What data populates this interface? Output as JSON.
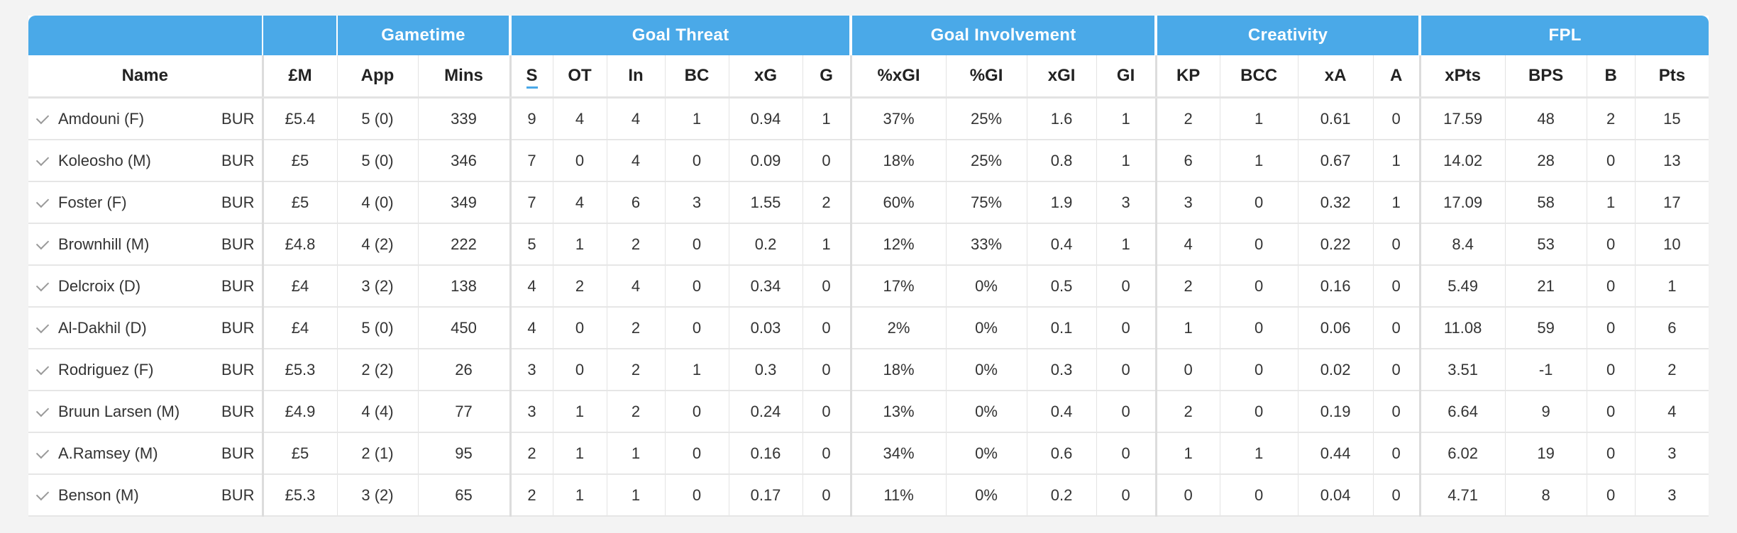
{
  "groups": [
    "Gametime",
    "Goal Threat",
    "Goal Involvement",
    "Creativity",
    "FPL"
  ],
  "columns": [
    "Name",
    "£M",
    "App",
    "Mins",
    "S",
    "OT",
    "In",
    "BC",
    "xG",
    "G",
    "%xGI",
    "%GI",
    "xGI",
    "GI",
    "KP",
    "BCC",
    "xA",
    "A",
    "xPts",
    "BPS",
    "B",
    "Pts"
  ],
  "rows": [
    {
      "name": "Amdouni (F)",
      "team": "BUR",
      "price": "£5.4",
      "app": "5 (0)",
      "mins": "339",
      "s": "9",
      "ot": "4",
      "in": "4",
      "bc": "1",
      "xg": "0.94",
      "g": "1",
      "pxgi": "37%",
      "pgi": "25%",
      "xgi": "1.6",
      "gi": "1",
      "kp": "2",
      "bcc": "1",
      "xa": "0.61",
      "a": "0",
      "xpts": "17.59",
      "bps": "48",
      "b": "2",
      "pts": "15"
    },
    {
      "name": "Koleosho (M)",
      "team": "BUR",
      "price": "£5",
      "app": "5 (0)",
      "mins": "346",
      "s": "7",
      "ot": "0",
      "in": "4",
      "bc": "0",
      "xg": "0.09",
      "g": "0",
      "pxgi": "18%",
      "pgi": "25%",
      "xgi": "0.8",
      "gi": "1",
      "kp": "6",
      "bcc": "1",
      "xa": "0.67",
      "a": "1",
      "xpts": "14.02",
      "bps": "28",
      "b": "0",
      "pts": "13"
    },
    {
      "name": "Foster (F)",
      "team": "BUR",
      "price": "£5",
      "app": "4 (0)",
      "mins": "349",
      "s": "7",
      "ot": "4",
      "in": "6",
      "bc": "3",
      "xg": "1.55",
      "g": "2",
      "pxgi": "60%",
      "pgi": "75%",
      "xgi": "1.9",
      "gi": "3",
      "kp": "3",
      "bcc": "0",
      "xa": "0.32",
      "a": "1",
      "xpts": "17.09",
      "bps": "58",
      "b": "1",
      "pts": "17"
    },
    {
      "name": "Brownhill (M)",
      "team": "BUR",
      "price": "£4.8",
      "app": "4 (2)",
      "mins": "222",
      "s": "5",
      "ot": "1",
      "in": "2",
      "bc": "0",
      "xg": "0.2",
      "g": "1",
      "pxgi": "12%",
      "pgi": "33%",
      "xgi": "0.4",
      "gi": "1",
      "kp": "4",
      "bcc": "0",
      "xa": "0.22",
      "a": "0",
      "xpts": "8.4",
      "bps": "53",
      "b": "0",
      "pts": "10"
    },
    {
      "name": "Delcroix (D)",
      "team": "BUR",
      "price": "£4",
      "app": "3 (2)",
      "mins": "138",
      "s": "4",
      "ot": "2",
      "in": "4",
      "bc": "0",
      "xg": "0.34",
      "g": "0",
      "pxgi": "17%",
      "pgi": "0%",
      "xgi": "0.5",
      "gi": "0",
      "kp": "2",
      "bcc": "0",
      "xa": "0.16",
      "a": "0",
      "xpts": "5.49",
      "bps": "21",
      "b": "0",
      "pts": "1"
    },
    {
      "name": "Al-Dakhil (D)",
      "team": "BUR",
      "price": "£4",
      "app": "5 (0)",
      "mins": "450",
      "s": "4",
      "ot": "0",
      "in": "2",
      "bc": "0",
      "xg": "0.03",
      "g": "0",
      "pxgi": "2%",
      "pgi": "0%",
      "xgi": "0.1",
      "gi": "0",
      "kp": "1",
      "bcc": "0",
      "xa": "0.06",
      "a": "0",
      "xpts": "11.08",
      "bps": "59",
      "b": "0",
      "pts": "6"
    },
    {
      "name": "Rodriguez (F)",
      "team": "BUR",
      "price": "£5.3",
      "app": "2 (2)",
      "mins": "26",
      "s": "3",
      "ot": "0",
      "in": "2",
      "bc": "1",
      "xg": "0.3",
      "g": "0",
      "pxgi": "18%",
      "pgi": "0%",
      "xgi": "0.3",
      "gi": "0",
      "kp": "0",
      "bcc": "0",
      "xa": "0.02",
      "a": "0",
      "xpts": "3.51",
      "bps": "-1",
      "b": "0",
      "pts": "2"
    },
    {
      "name": "Bruun Larsen (M)",
      "team": "BUR",
      "price": "£4.9",
      "app": "4 (4)",
      "mins": "77",
      "s": "3",
      "ot": "1",
      "in": "2",
      "bc": "0",
      "xg": "0.24",
      "g": "0",
      "pxgi": "13%",
      "pgi": "0%",
      "xgi": "0.4",
      "gi": "0",
      "kp": "2",
      "bcc": "0",
      "xa": "0.19",
      "a": "0",
      "xpts": "6.64",
      "bps": "9",
      "b": "0",
      "pts": "4"
    },
    {
      "name": "A.Ramsey (M)",
      "team": "BUR",
      "price": "£5",
      "app": "2 (1)",
      "mins": "95",
      "s": "2",
      "ot": "1",
      "in": "1",
      "bc": "0",
      "xg": "0.16",
      "g": "0",
      "pxgi": "34%",
      "pgi": "0%",
      "xgi": "0.6",
      "gi": "0",
      "kp": "1",
      "bcc": "1",
      "xa": "0.44",
      "a": "0",
      "xpts": "6.02",
      "bps": "19",
      "b": "0",
      "pts": "3"
    },
    {
      "name": "Benson (M)",
      "team": "BUR",
      "price": "£5.3",
      "app": "3 (2)",
      "mins": "65",
      "s": "2",
      "ot": "1",
      "in": "1",
      "bc": "0",
      "xg": "0.17",
      "g": "0",
      "pxgi": "11%",
      "pgi": "0%",
      "xgi": "0.2",
      "gi": "0",
      "kp": "0",
      "bcc": "0",
      "xa": "0.04",
      "a": "0",
      "xpts": "4.71",
      "bps": "8",
      "b": "0",
      "pts": "3"
    }
  ]
}
